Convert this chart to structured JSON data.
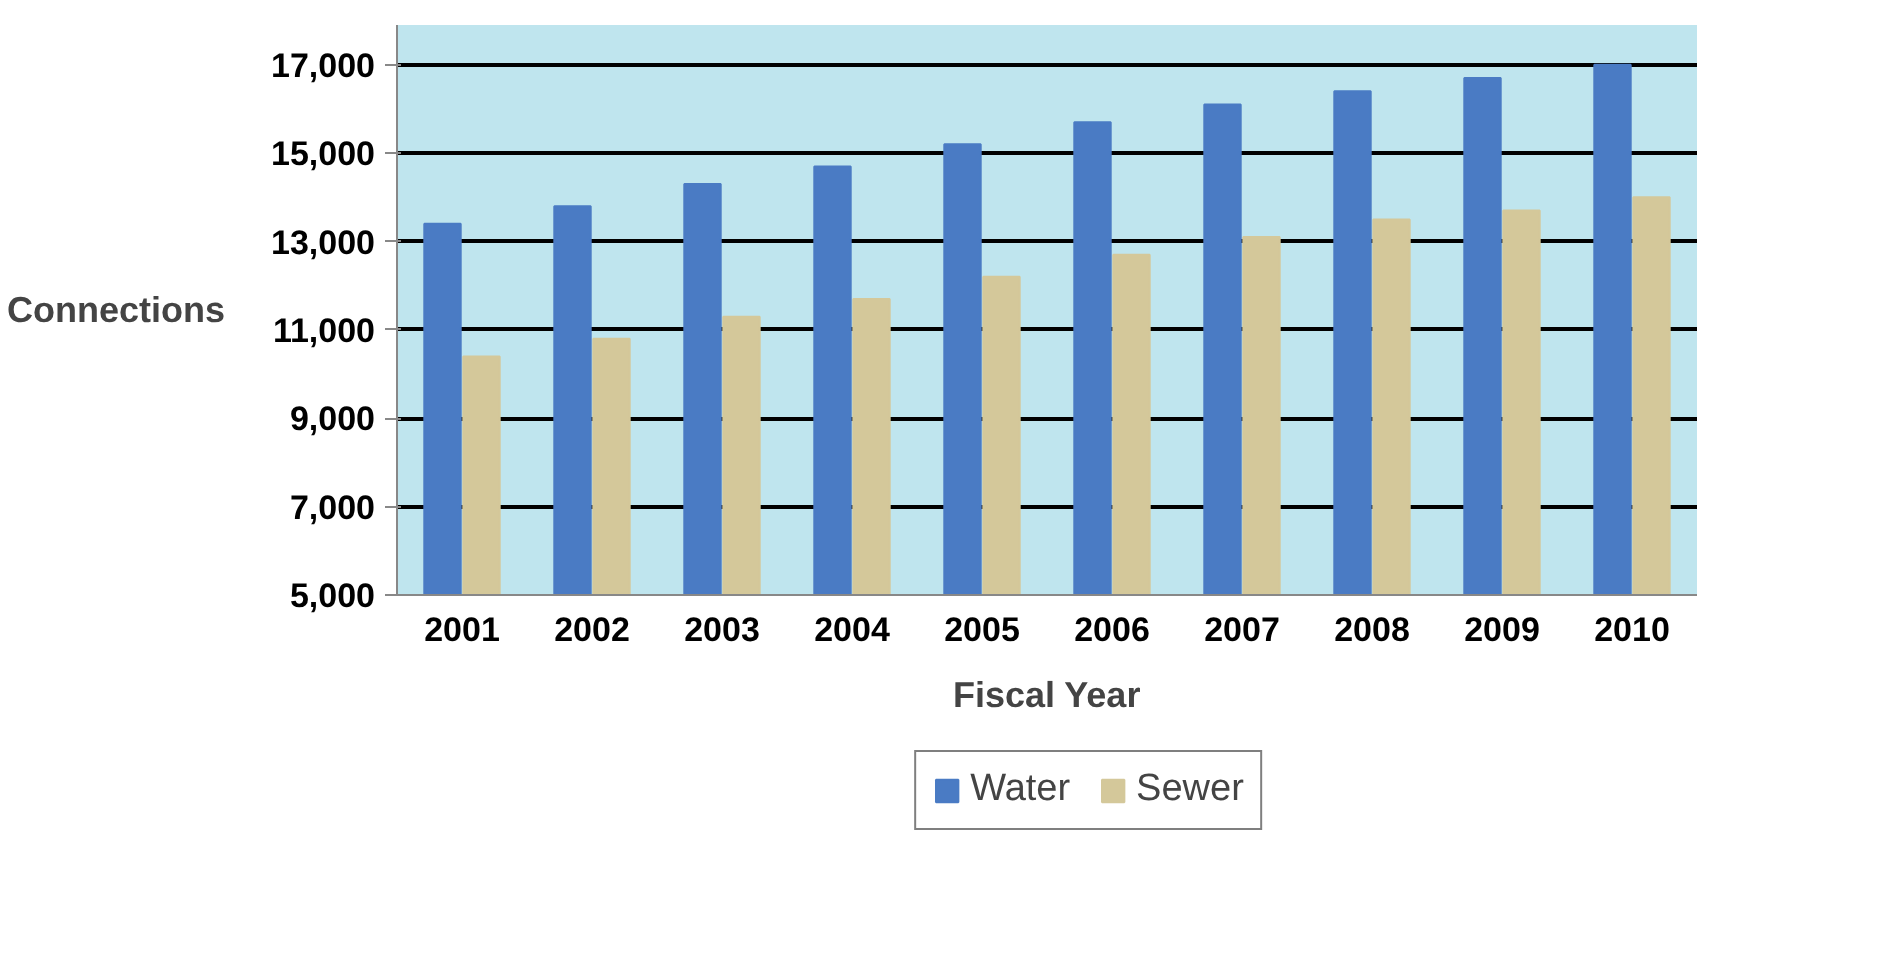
{
  "chart_data": {
    "type": "bar",
    "xlabel": "Fiscal Year",
    "ylabel": "Connections",
    "categories": [
      "2001",
      "2002",
      "2003",
      "2004",
      "2005",
      "2006",
      "2007",
      "2008",
      "2009",
      "2010"
    ],
    "series": [
      {
        "name": "Water",
        "color": "#4a7bc4",
        "values": [
          13400,
          13800,
          14300,
          14700,
          15200,
          15700,
          16100,
          16400,
          16700,
          17000
        ]
      },
      {
        "name": "Sewer",
        "color": "#d4c89a",
        "values": [
          10400,
          10800,
          11300,
          11700,
          12200,
          12700,
          13100,
          13500,
          13700,
          14000
        ]
      }
    ],
    "ylim": [
      5000,
      17900
    ],
    "yticks": [
      {
        "value": 5000,
        "label": "5,000"
      },
      {
        "value": 7000,
        "label": "7,000"
      },
      {
        "value": 9000,
        "label": "9,000"
      },
      {
        "value": 11000,
        "label": "11,000"
      },
      {
        "value": 13000,
        "label": "13,000"
      },
      {
        "value": 15000,
        "label": "15,000"
      },
      {
        "value": 17000,
        "label": "17,000"
      }
    ],
    "grid": "y",
    "legend": "bottom"
  }
}
